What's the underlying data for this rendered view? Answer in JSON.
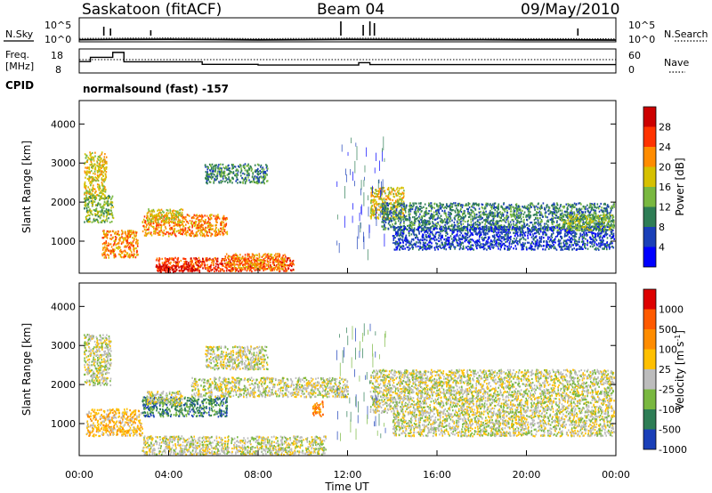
{
  "header": {
    "title": "Saskatoon (fitACF)",
    "beam": "Beam 04",
    "date": "09/May/2010",
    "cpid": "CPID",
    "program": "normalsound (fast) -157"
  },
  "chart_data": [
    {
      "type": "line",
      "panel": "noise",
      "left_label": "N.Sky",
      "right_label": "N.Search",
      "yscale": "log",
      "left_ticks": [
        "10^5",
        "10^0"
      ],
      "right_ticks": [
        "10^5",
        "10^0"
      ],
      "x": [
        "00:00",
        "02:00",
        "04:00",
        "06:00",
        "08:00",
        "10:00",
        "12:00",
        "14:00",
        "16:00",
        "18:00",
        "20:00",
        "22:00",
        "24:00"
      ],
      "series": [
        {
          "values": [
            1.2,
            1.4,
            1.5,
            1.3,
            1.1,
            1.2,
            1.4,
            1.3,
            1.2,
            1.2,
            1.1,
            1.1,
            1.0
          ]
        }
      ]
    },
    {
      "type": "line",
      "panel": "frequency",
      "left_label": "Freq.",
      "left_unit": "[MHz]",
      "right_label": "Nave",
      "left_ticks": [
        "18",
        "8"
      ],
      "right_ticks": [
        "60",
        "0"
      ],
      "x": [
        "00:00",
        "00:30",
        "01:30",
        "02:00",
        "05:30",
        "08:00",
        "12:30",
        "13:00",
        "24:00"
      ],
      "series": [
        {
          "values": [
            12.5,
            14.5,
            16.8,
            12.4,
            11.2,
            10.9,
            12.0,
            11.1,
            11.1
          ]
        }
      ]
    },
    {
      "type": "heatmap",
      "panel": "power",
      "xlabel": "",
      "ylabel": "Slant Range [km]",
      "yticks": [
        1000,
        2000,
        3000,
        4000
      ],
      "ylim": [
        180,
        4600
      ],
      "colorbar_label": "Power [dB]",
      "colorbar_ticks": [
        4,
        8,
        12,
        16,
        20,
        24,
        28
      ],
      "colors": [
        "#0000ff",
        "#1a3fb8",
        "#2e7d55",
        "#79b840",
        "#d6c000",
        "#ff8c00",
        "#ff3300",
        "#cc0000"
      ],
      "regions": [
        {
          "t": [
            0.2,
            1.2
          ],
          "r": [
            2100,
            3300
          ],
          "level": 4
        },
        {
          "t": [
            0.2,
            1.5
          ],
          "r": [
            1500,
            2200
          ],
          "level": 3
        },
        {
          "t": [
            1.0,
            2.6
          ],
          "r": [
            600,
            1300
          ],
          "level": 5
        },
        {
          "t": [
            2.8,
            6.6
          ],
          "r": [
            1150,
            1700
          ],
          "level": 5
        },
        {
          "t": [
            3.0,
            4.6
          ],
          "r": [
            1500,
            1850
          ],
          "level": 4
        },
        {
          "t": [
            5.6,
            8.4
          ],
          "r": [
            2500,
            3000
          ],
          "level": 2
        },
        {
          "t": [
            3.4,
            9.6
          ],
          "r": [
            250,
            600
          ],
          "level": 6
        },
        {
          "t": [
            3.4,
            5.4
          ],
          "r": [
            180,
            400
          ],
          "level": 7
        },
        {
          "t": [
            6.5,
            9.2
          ],
          "r": [
            300,
            700
          ],
          "level": 5
        },
        {
          "t": [
            13.0,
            14.5
          ],
          "r": [
            1600,
            2400
          ],
          "level": 4
        },
        {
          "t": [
            13.5,
            23.9
          ],
          "r": [
            1300,
            2000
          ],
          "level": 2
        },
        {
          "t": [
            14.0,
            23.9
          ],
          "r": [
            800,
            1400
          ],
          "level": 1
        },
        {
          "t": [
            21.5,
            23.9
          ],
          "r": [
            1300,
            1700
          ],
          "level": 3
        }
      ]
    },
    {
      "type": "heatmap",
      "panel": "velocity",
      "xlabel": "Time UT",
      "ylabel": "Slant Range [km]",
      "yticks": [
        1000,
        2000,
        3000,
        4000
      ],
      "ylim": [
        180,
        4600
      ],
      "colorbar_label": "Velocity [m s^-1]",
      "colorbar_ticks": [
        1000,
        500,
        100,
        25,
        -25,
        -100,
        -500,
        -1000
      ],
      "colors": [
        "#1a3fb8",
        "#2e7d55",
        "#79b840",
        "#bcbcbc",
        "#ffc000",
        "#ff8c00",
        "#ff5a00",
        "#dd0000"
      ],
      "regions": [
        {
          "t": [
            0.2,
            1.4
          ],
          "r": [
            2000,
            3300
          ],
          "level": 3
        },
        {
          "t": [
            0.3,
            2.8
          ],
          "r": [
            700,
            1400
          ],
          "level": 4
        },
        {
          "t": [
            2.8,
            6.6
          ],
          "r": [
            1200,
            1700
          ],
          "level": 1
        },
        {
          "t": [
            3.0,
            4.6
          ],
          "r": [
            1500,
            1850
          ],
          "level": 3
        },
        {
          "t": [
            5.6,
            8.4
          ],
          "r": [
            2400,
            3000
          ],
          "level": 3
        },
        {
          "t": [
            2.8,
            11.0
          ],
          "r": [
            180,
            700
          ],
          "level": 3
        },
        {
          "t": [
            5.0,
            12.0
          ],
          "r": [
            1700,
            2200
          ],
          "level": 3
        },
        {
          "t": [
            10.4,
            10.9
          ],
          "r": [
            1200,
            1600
          ],
          "level": 5
        },
        {
          "t": [
            13.0,
            23.9
          ],
          "r": [
            1300,
            2400
          ],
          "level": 3
        },
        {
          "t": [
            14.0,
            23.9
          ],
          "r": [
            700,
            1300
          ],
          "level": 3
        }
      ],
      "xticks": [
        "00:00",
        "04:00",
        "08:00",
        "12:00",
        "16:00",
        "20:00",
        "00:00"
      ]
    }
  ]
}
